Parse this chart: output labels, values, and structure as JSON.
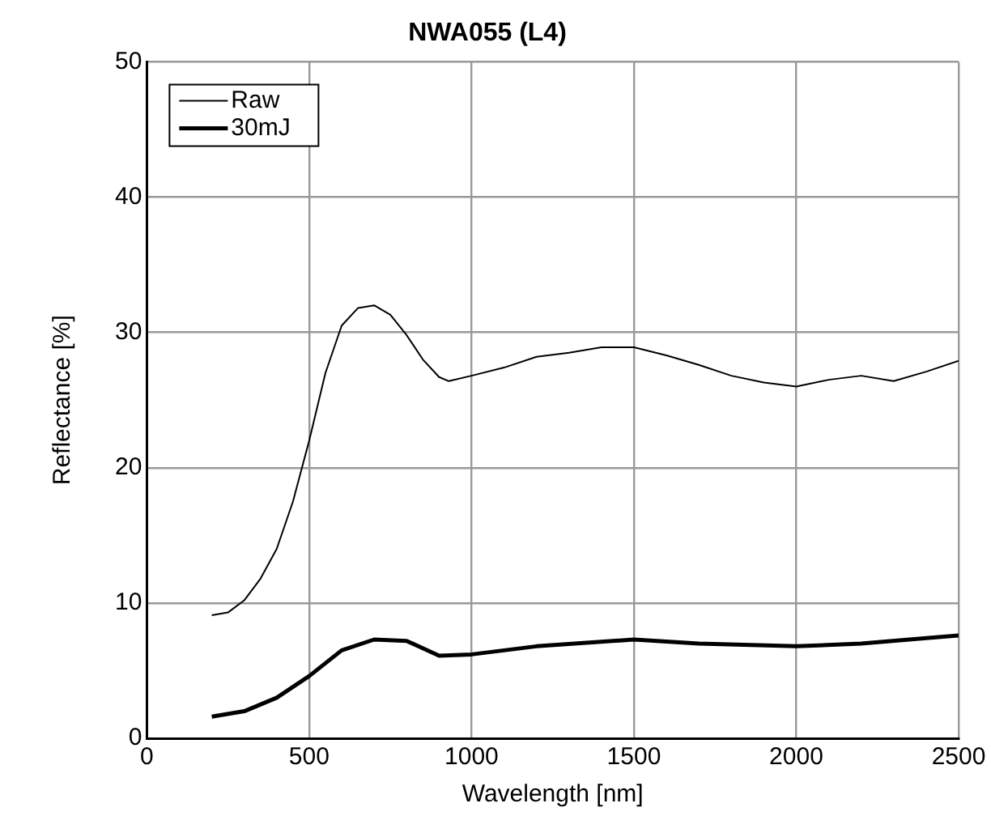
{
  "chart_data": {
    "type": "line",
    "title": "NWA055 (L4)",
    "xlabel": "Wavelength [nm]",
    "ylabel": "Reflectance [%]",
    "xlim": [
      0,
      2500
    ],
    "xticks": [
      0,
      500,
      1000,
      1500,
      2000,
      2500
    ],
    "ylim": [
      0,
      50
    ],
    "yticks": [
      0,
      10,
      20,
      30,
      40,
      50
    ],
    "grid": true,
    "legend": "top left",
    "marker": "none",
    "line_style": "solid",
    "series": [
      {
        "name": "Raw",
        "color": "#000000",
        "x": [
          200,
          250,
          300,
          350,
          400,
          450,
          500,
          550,
          600,
          650,
          700,
          750,
          800,
          850,
          900,
          930,
          1000,
          1100,
          1200,
          1300,
          1400,
          1500,
          1600,
          1700,
          1800,
          1900,
          2000,
          2100,
          2200,
          2300,
          2400,
          2500
        ],
        "values": [
          9.1,
          9.3,
          10.2,
          11.8,
          14,
          17.5,
          22,
          27,
          30.5,
          31.8,
          32,
          31.3,
          29.8,
          28,
          26.7,
          26.4,
          26.8,
          27.4,
          28.2,
          28.5,
          28.9,
          28.9,
          28.3,
          27.6,
          26.8,
          26.3,
          26,
          26.5,
          26.8,
          26.4,
          27.1,
          27.9
        ]
      },
      {
        "name": "30mJ",
        "color": "#000000",
        "x": [
          200,
          300,
          400,
          500,
          600,
          700,
          800,
          900,
          1000,
          1200,
          1500,
          1700,
          2000,
          2200,
          2400,
          2500
        ],
        "values": [
          1.6,
          2,
          3,
          4.6,
          6.5,
          7.3,
          7.2,
          6.1,
          6.2,
          6.8,
          7.3,
          7,
          6.8,
          7,
          7.4,
          7.6
        ]
      }
    ]
  }
}
